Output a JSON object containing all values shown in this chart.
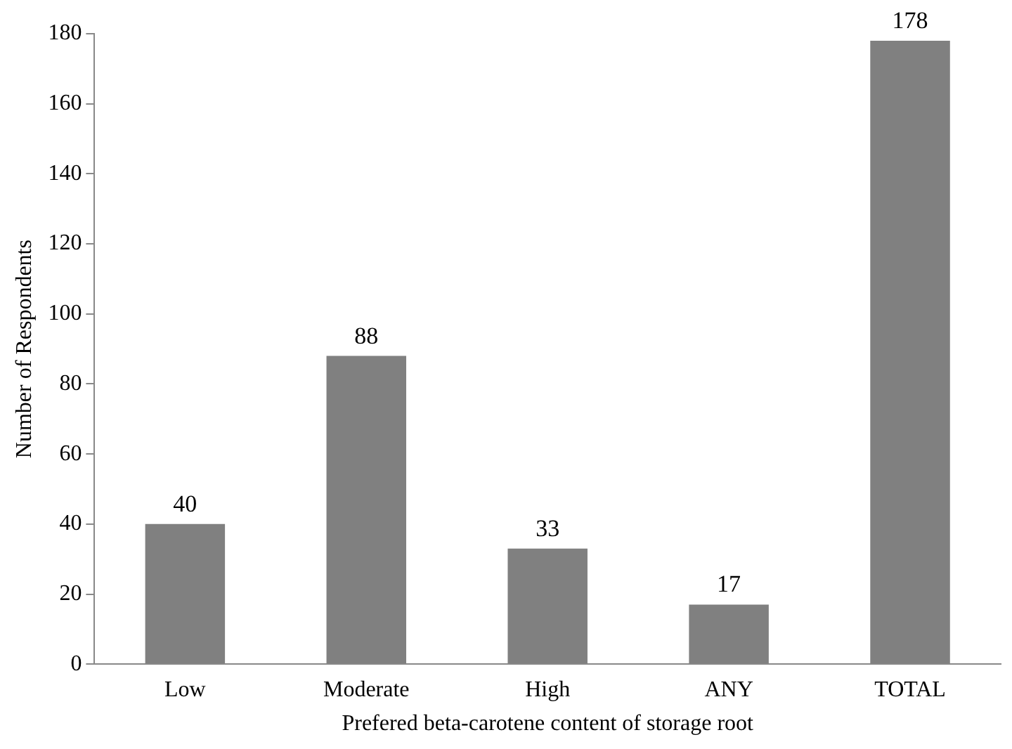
{
  "chart_data": {
    "type": "bar",
    "xlabel": "Prefered beta-carotene content of storage root",
    "ylabel": "Number of Respondents",
    "categories": [
      "Low",
      "Moderate",
      "High",
      "ANY",
      "TOTAL"
    ],
    "values": [
      40,
      88,
      33,
      17,
      178
    ],
    "color": "#808080",
    "ylim": [
      0,
      180
    ],
    "yticks": [
      0,
      20,
      40,
      60,
      80,
      100,
      120,
      140,
      160,
      180
    ],
    "grid": false,
    "data_labels": true,
    "legend": false
  }
}
